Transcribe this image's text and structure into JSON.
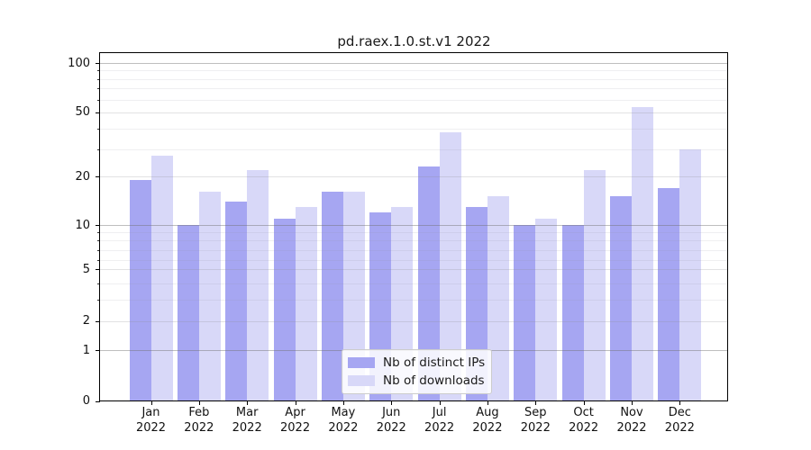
{
  "title": "pd.raex.1.0.st.v1 2022",
  "colors": {
    "background": "#ffffff",
    "distinct_ips_bar": "#a6a6f2",
    "downloads_bar": "#d8d8f8",
    "spine": "#000000",
    "grid_decade": "rgba(110,110,110,0.45)",
    "grid_mid": "rgba(140,140,145,0.25)",
    "grid_minor": "rgba(150,150,160,0.15)"
  },
  "legend": {
    "entries": [
      {
        "label": "Nb of distinct IPs",
        "color": "#a6a6f2"
      },
      {
        "label": "Nb of downloads",
        "color": "#d8d8f8"
      }
    ]
  },
  "x_axis": {
    "month_labels": [
      "Jan",
      "Feb",
      "Mar",
      "Apr",
      "May",
      "Jun",
      "Jul",
      "Aug",
      "Sep",
      "Oct",
      "Nov",
      "Dec"
    ],
    "year_label": "2022"
  },
  "y_axis": {
    "tick_labels": [
      "100",
      "50",
      "20",
      "10",
      "5",
      "2",
      "1",
      "0"
    ],
    "tick_values": [
      100,
      50,
      20,
      10,
      5,
      2,
      1,
      0
    ]
  },
  "chart_data": {
    "type": "bar",
    "title": "pd.raex.1.0.st.v1 2022",
    "categories": [
      "Jan 2022",
      "Feb 2022",
      "Mar 2022",
      "Apr 2022",
      "May 2022",
      "Jun 2022",
      "Jul 2022",
      "Aug 2022",
      "Sep 2022",
      "Oct 2022",
      "Nov 2022",
      "Dec 2022"
    ],
    "series": [
      {
        "name": "Nb of distinct IPs",
        "color": "#a6a6f2",
        "values": [
          19,
          10,
          14,
          11,
          16,
          12,
          23,
          13,
          10,
          10,
          15,
          17
        ]
      },
      {
        "name": "Nb of downloads",
        "color": "#d8d8f8",
        "values": [
          27,
          16,
          22,
          13,
          16,
          13,
          38,
          15,
          11,
          22,
          54,
          30
        ]
      }
    ],
    "xlabel": "",
    "ylabel": "",
    "ylim": [
      0,
      100
    ],
    "yscale": "symlog",
    "y_ticks": [
      0,
      1,
      2,
      5,
      10,
      20,
      50,
      100
    ],
    "grid": "on (major + minor, drawn over bars)",
    "legend_position": "lower center"
  }
}
